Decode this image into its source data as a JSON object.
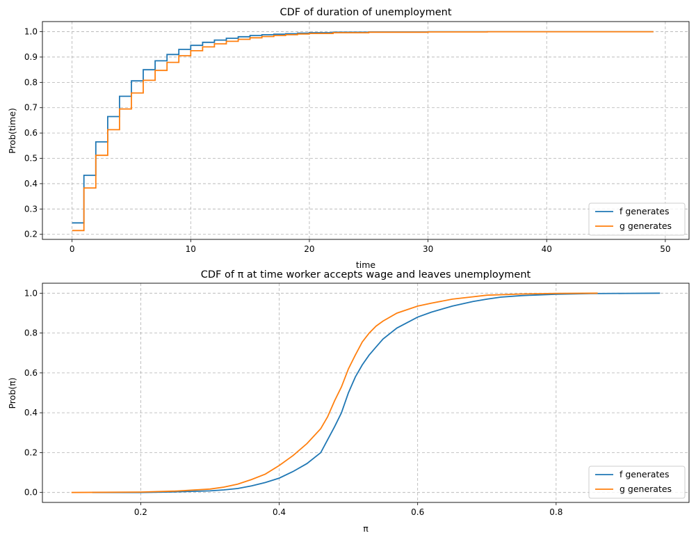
{
  "chart_data": [
    {
      "type": "line",
      "title": "CDF of duration of unemployment",
      "xlabel": "time",
      "ylabel": "Prob(time)",
      "xlim": [
        -2.5,
        52
      ],
      "ylim": [
        0.18,
        1.04
      ],
      "xticks": [
        0,
        10,
        20,
        30,
        40,
        50
      ],
      "yticks": [
        0.2,
        0.3,
        0.4,
        0.5,
        0.6,
        0.7,
        0.8,
        0.9,
        1.0
      ],
      "grid": true,
      "legend_position": "bottom-right",
      "step": true,
      "series": [
        {
          "name": "f generates",
          "color": "#1f77b4",
          "x": [
            0,
            1,
            2,
            3,
            4,
            5,
            6,
            7,
            8,
            9,
            10,
            11,
            12,
            13,
            14,
            15,
            16,
            17,
            18,
            19,
            20,
            22,
            25,
            30,
            35,
            40,
            45,
            49
          ],
          "y": [
            0.245,
            0.433,
            0.565,
            0.665,
            0.745,
            0.806,
            0.85,
            0.885,
            0.91,
            0.93,
            0.946,
            0.958,
            0.967,
            0.974,
            0.98,
            0.985,
            0.988,
            0.99,
            0.992,
            0.994,
            0.996,
            0.998,
            0.999,
            1.0,
            1.0,
            1.0,
            1.0,
            1.0
          ]
        },
        {
          "name": "g generates",
          "color": "#ff7f0e",
          "x": [
            0,
            1,
            2,
            3,
            4,
            5,
            6,
            7,
            8,
            9,
            10,
            11,
            12,
            13,
            14,
            15,
            16,
            17,
            18,
            19,
            20,
            22,
            25,
            30,
            35,
            40,
            45,
            49
          ],
          "y": [
            0.215,
            0.383,
            0.512,
            0.613,
            0.695,
            0.758,
            0.808,
            0.847,
            0.879,
            0.905,
            0.925,
            0.94,
            0.952,
            0.962,
            0.97,
            0.976,
            0.981,
            0.985,
            0.988,
            0.991,
            0.993,
            0.996,
            0.998,
            0.999,
            1.0,
            1.0,
            1.0,
            1.0
          ]
        }
      ]
    },
    {
      "type": "line",
      "title": "CDF of π at time worker accepts wage and leaves unemployment",
      "xlabel": "π",
      "ylabel": "Prob(π)",
      "xlim": [
        0.058,
        0.992
      ],
      "ylim": [
        -0.05,
        1.05
      ],
      "xticks": [
        0.2,
        0.4,
        0.6,
        0.8
      ],
      "yticks": [
        0.0,
        0.2,
        0.4,
        0.6,
        0.8,
        1.0
      ],
      "grid": true,
      "legend_position": "bottom-right",
      "step": false,
      "series": [
        {
          "name": "f generates",
          "color": "#1f77b4",
          "x": [
            0.13,
            0.2,
            0.25,
            0.3,
            0.32,
            0.34,
            0.36,
            0.38,
            0.4,
            0.42,
            0.44,
            0.46,
            0.48,
            0.49,
            0.5,
            0.51,
            0.52,
            0.53,
            0.54,
            0.55,
            0.57,
            0.6,
            0.62,
            0.65,
            0.68,
            0.7,
            0.72,
            0.75,
            0.8,
            0.85,
            0.9,
            0.95
          ],
          "y": [
            0.0,
            0.0,
            0.003,
            0.008,
            0.013,
            0.02,
            0.033,
            0.05,
            0.072,
            0.105,
            0.145,
            0.2,
            0.33,
            0.4,
            0.5,
            0.58,
            0.64,
            0.69,
            0.73,
            0.77,
            0.825,
            0.88,
            0.905,
            0.935,
            0.958,
            0.97,
            0.98,
            0.988,
            0.995,
            0.998,
            0.999,
            1.0
          ]
        },
        {
          "name": "g generates",
          "color": "#ff7f0e",
          "x": [
            0.1,
            0.2,
            0.25,
            0.3,
            0.32,
            0.34,
            0.36,
            0.38,
            0.4,
            0.42,
            0.44,
            0.46,
            0.47,
            0.48,
            0.49,
            0.5,
            0.51,
            0.52,
            0.53,
            0.54,
            0.55,
            0.57,
            0.6,
            0.62,
            0.65,
            0.68,
            0.7,
            0.75,
            0.8,
            0.86
          ],
          "y": [
            0.0,
            0.002,
            0.007,
            0.017,
            0.027,
            0.042,
            0.065,
            0.092,
            0.135,
            0.185,
            0.245,
            0.32,
            0.38,
            0.46,
            0.53,
            0.62,
            0.69,
            0.755,
            0.8,
            0.835,
            0.86,
            0.9,
            0.935,
            0.95,
            0.97,
            0.982,
            0.99,
            0.996,
            0.999,
            1.0
          ]
        }
      ]
    }
  ]
}
